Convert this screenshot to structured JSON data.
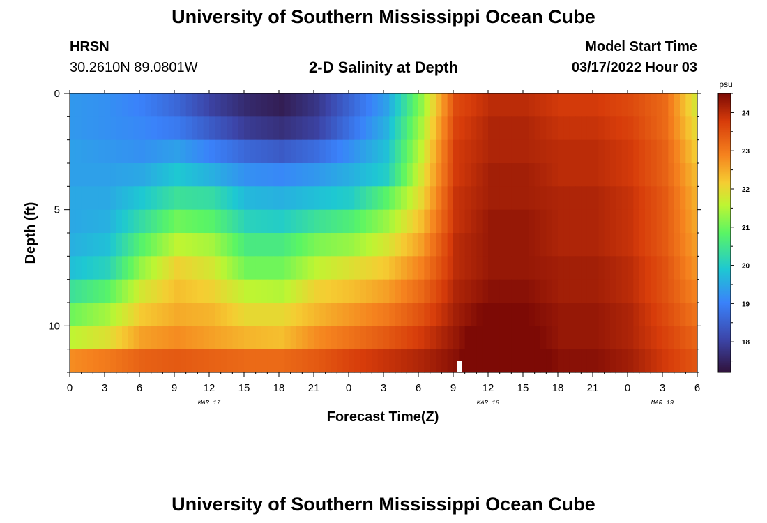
{
  "header": {
    "title": "University of Southern Mississippi Ocean Cube",
    "station": "HRSN",
    "coords": "30.2610N  89.0801W",
    "plot_title": "2-D Salinity at Depth",
    "model_label": "Model Start Time",
    "model_time": "03/17/2022 Hour 03",
    "footer_title": "University of Southern Mississippi Ocean Cube"
  },
  "chart_data": {
    "type": "heatmap",
    "title": "2-D Salinity at Depth",
    "xlabel": "Forecast Time(Z)",
    "ylabel": "Depth (ft)",
    "x_hours": [
      0,
      54
    ],
    "y_depth_ft": [
      0,
      12
    ],
    "x_ticks": [
      "0",
      "3",
      "6",
      "9",
      "12",
      "15",
      "18",
      "21",
      "0",
      "3",
      "6",
      "9",
      "12",
      "15",
      "18",
      "21",
      "0",
      "3",
      "6"
    ],
    "y_ticks": [
      "0",
      "5",
      "10"
    ],
    "date_labels": [
      {
        "label": "MAR 17",
        "hour": 12
      },
      {
        "label": "MAR 18",
        "hour": 36
      },
      {
        "label": "MAR 19",
        "hour": 51
      }
    ],
    "colorbar": {
      "unit": "psu",
      "range": [
        17.2,
        24.5
      ],
      "ticks": [
        "18",
        "19",
        "20",
        "21",
        "22",
        "23",
        "24"
      ]
    },
    "depth_levels_ft": [
      0.5,
      1.5,
      2.5,
      3.5,
      4.5,
      5.5,
      6.5,
      7.5,
      8.5,
      9.5,
      10.5,
      11.5
    ],
    "salinity_series": [
      {
        "depth": 0.5,
        "values": [
          19.3,
          19.2,
          19.0,
          18.6,
          18.0,
          17.6,
          17.4,
          17.8,
          18.6,
          19.4,
          21.2,
          23.6,
          24.0,
          24.0,
          23.8,
          23.8,
          23.6,
          23.2,
          21.6
        ]
      },
      {
        "depth": 1.5,
        "values": [
          19.3,
          19.2,
          19.1,
          18.9,
          18.4,
          17.9,
          17.7,
          18.0,
          18.8,
          19.6,
          21.4,
          23.7,
          24.1,
          24.1,
          23.9,
          23.9,
          23.7,
          23.2,
          21.8
        ]
      },
      {
        "depth": 2.5,
        "values": [
          19.4,
          19.3,
          19.2,
          19.4,
          19.0,
          18.6,
          18.4,
          18.7,
          19.2,
          19.8,
          21.6,
          23.8,
          24.1,
          24.1,
          24.0,
          24.0,
          23.8,
          23.3,
          22.0
        ]
      },
      {
        "depth": 3.5,
        "values": [
          19.4,
          19.4,
          19.5,
          19.9,
          19.6,
          19.2,
          19.1,
          19.3,
          19.6,
          20.0,
          21.8,
          23.8,
          24.2,
          24.2,
          24.0,
          24.0,
          23.8,
          23.3,
          22.2
        ]
      },
      {
        "depth": 4.5,
        "values": [
          19.5,
          19.5,
          19.9,
          20.4,
          20.3,
          19.7,
          19.6,
          19.8,
          20.0,
          20.8,
          22.0,
          23.9,
          24.2,
          24.2,
          24.1,
          24.1,
          23.9,
          23.4,
          22.3
        ]
      },
      {
        "depth": 5.5,
        "values": [
          19.5,
          19.6,
          20.3,
          21.0,
          20.8,
          20.1,
          20.0,
          20.4,
          20.7,
          21.3,
          22.3,
          23.9,
          24.3,
          24.3,
          24.1,
          24.1,
          23.9,
          23.4,
          22.4
        ]
      },
      {
        "depth": 6.5,
        "values": [
          19.6,
          19.8,
          20.8,
          21.6,
          21.4,
          20.6,
          20.6,
          21.1,
          21.3,
          21.8,
          22.6,
          24.0,
          24.3,
          24.3,
          24.1,
          24.1,
          23.9,
          23.4,
          22.5
        ]
      },
      {
        "depth": 7.5,
        "values": [
          19.8,
          20.1,
          21.3,
          22.1,
          21.8,
          21.0,
          21.0,
          21.6,
          21.9,
          22.2,
          22.9,
          24.0,
          24.3,
          24.3,
          24.2,
          24.2,
          24.0,
          23.5,
          22.6
        ]
      },
      {
        "depth": 8.5,
        "values": [
          20.4,
          20.8,
          21.8,
          22.3,
          22.1,
          21.6,
          21.5,
          22.1,
          22.3,
          22.6,
          23.2,
          24.1,
          24.4,
          24.4,
          24.2,
          24.2,
          24.0,
          23.5,
          22.8
        ]
      },
      {
        "depth": 9.5,
        "values": [
          21.0,
          21.4,
          22.2,
          22.5,
          22.4,
          22.0,
          22.0,
          22.4,
          22.7,
          23.0,
          23.5,
          24.2,
          24.6,
          24.5,
          24.3,
          24.3,
          24.1,
          23.6,
          23.0
        ]
      },
      {
        "depth": 10.5,
        "values": [
          21.6,
          21.9,
          22.6,
          22.8,
          22.6,
          22.4,
          22.3,
          22.8,
          23.1,
          23.4,
          23.8,
          24.3,
          24.9,
          24.6,
          24.3,
          24.3,
          24.1,
          23.7,
          23.2
        ]
      },
      {
        "depth": 11.5,
        "values": [
          22.8,
          23.0,
          23.3,
          23.4,
          23.3,
          23.2,
          23.2,
          23.4,
          23.7,
          23.9,
          24.1,
          24.4,
          25.1,
          24.7,
          24.4,
          24.4,
          24.2,
          23.8,
          23.4
        ]
      }
    ],
    "time_step_hours": 3
  }
}
